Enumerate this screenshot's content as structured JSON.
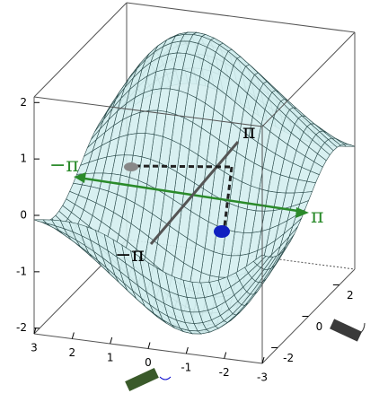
{
  "chart_data": {
    "type": "surface",
    "xlim": [
      3,
      -3
    ],
    "xticks": [
      3,
      2,
      1,
      0,
      -1,
      -2,
      -3
    ],
    "ylim": [
      -3,
      3
    ],
    "yticks": [
      -2,
      0,
      2
    ],
    "zlim": [
      -2.1,
      2.1
    ],
    "zticks": [
      -2,
      -1,
      0,
      1,
      2
    ],
    "surface_color": "#d4eef0",
    "annotations": [
      "−π",
      "π",
      "−π",
      "π"
    ]
  }
}
